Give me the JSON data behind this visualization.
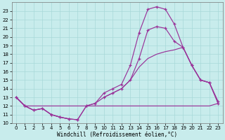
{
  "background_color": "#c8ecec",
  "grid_color": "#a8d8d8",
  "line_color": "#993399",
  "xlabel": "Windchill (Refroidissement éolien,°C)",
  "xlim": [
    -0.5,
    23.5
  ],
  "ylim": [
    10,
    24
  ],
  "xticks": [
    0,
    1,
    2,
    3,
    4,
    5,
    6,
    7,
    8,
    9,
    10,
    11,
    12,
    13,
    14,
    15,
    16,
    17,
    18,
    19,
    20,
    21,
    22,
    23
  ],
  "yticks": [
    10,
    11,
    12,
    13,
    14,
    15,
    16,
    17,
    18,
    19,
    20,
    21,
    22,
    23
  ],
  "curve1_x": [
    0,
    1,
    2,
    3,
    4,
    5,
    6,
    7,
    8,
    9,
    10,
    11,
    12,
    13,
    14,
    15,
    16,
    17,
    18,
    19,
    20,
    21,
    22,
    23
  ],
  "curve1_y": [
    13,
    12,
    11.5,
    11.7,
    11.0,
    10.7,
    10.5,
    10.4,
    12.0,
    12.3,
    13.5,
    14.0,
    14.5,
    16.7,
    20.5,
    23.2,
    23.5,
    23.2,
    21.5,
    18.8,
    16.7,
    15.0,
    14.7,
    12.5
  ],
  "curve2_x": [
    0,
    1,
    2,
    3,
    4,
    5,
    6,
    7,
    8,
    9,
    10,
    11,
    12,
    13,
    14,
    15,
    16,
    17,
    18,
    19,
    20,
    21,
    22,
    23
  ],
  "curve2_y": [
    13,
    12,
    11.5,
    11.7,
    11.0,
    10.7,
    10.5,
    10.4,
    12.0,
    12.3,
    13.0,
    13.5,
    14.0,
    15.0,
    17.5,
    20.8,
    21.2,
    21.0,
    19.5,
    18.8,
    16.7,
    15.0,
    14.7,
    12.3
  ],
  "curve3_x": [
    0,
    1,
    2,
    3,
    4,
    5,
    6,
    7,
    8,
    9,
    10,
    11,
    12,
    13,
    14,
    15,
    16,
    17,
    18,
    19,
    20,
    21,
    22,
    23
  ],
  "curve3_y": [
    13,
    12,
    11.5,
    11.7,
    11.0,
    10.7,
    10.5,
    null,
    null,
    null,
    13.0,
    13.5,
    14.0,
    15.0,
    16.5,
    17.5,
    18.0,
    18.3,
    18.5,
    18.8,
    16.7,
    15.0,
    14.7,
    12.3
  ],
  "curve4_x": [
    0,
    1,
    2,
    3,
    4,
    5,
    6,
    7,
    8,
    9,
    10,
    11,
    12,
    13,
    14,
    15,
    16,
    17,
    18,
    19,
    20,
    21,
    22,
    23
  ],
  "curve4_y": [
    13,
    12,
    12.0,
    12.0,
    12.0,
    12.0,
    12.0,
    12.0,
    12.0,
    12.0,
    12.0,
    12.0,
    12.0,
    12.0,
    12.0,
    12.0,
    12.0,
    12.0,
    12.0,
    12.0,
    12.0,
    12.0,
    12.0,
    12.3
  ]
}
